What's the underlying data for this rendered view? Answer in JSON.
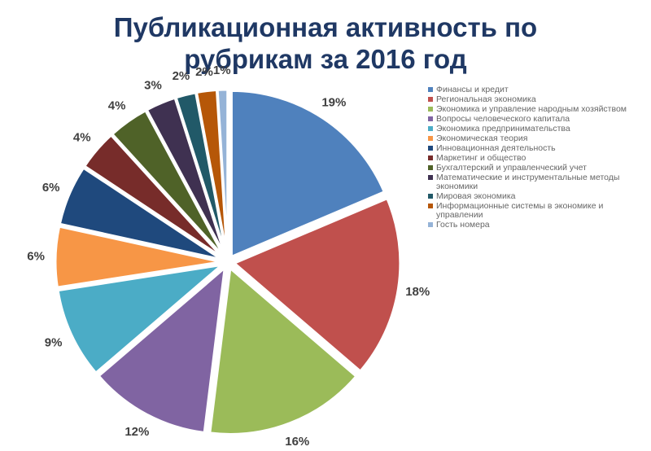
{
  "title": {
    "line1": "Публикационная активность по",
    "line2": "рубрикам за 2016 год"
  },
  "chart_data": {
    "type": "pie",
    "title": "Публикационная активность по рубрикам за 2016 год",
    "legend_position": "right",
    "labels": [
      "Финансы и кредит",
      "Региональная экономика",
      "Экономика и управление народным хозяйством",
      "Вопросы человеческого капитала",
      "Экономика предпринимательства",
      "Экономическая теория",
      "Инновационная деятельность",
      "Маркетинг и общество",
      "Бухгалтерский и управленческий учет",
      "Математические и инструментальные методы экономики",
      "Мировая экономика",
      "Информационные системы в экономике и управлении",
      "Гость номера"
    ],
    "values": [
      19,
      18,
      16,
      12,
      9,
      6,
      6,
      4,
      4,
      3,
      2,
      2,
      1
    ],
    "data_labels": [
      "19%",
      "18%",
      "16%",
      "12%",
      "9%",
      "6%",
      "6%",
      "4%",
      "4%",
      "3%",
      "2%",
      "2%",
      "1%"
    ],
    "colors": [
      "#4f81bd",
      "#c0504d",
      "#9bbb59",
      "#8064a2",
      "#4bacc6",
      "#f79646",
      "#1f497d",
      "#772c2a",
      "#4f6228",
      "#3f3151",
      "#215968",
      "#b65708",
      "#95b3d7"
    ]
  }
}
